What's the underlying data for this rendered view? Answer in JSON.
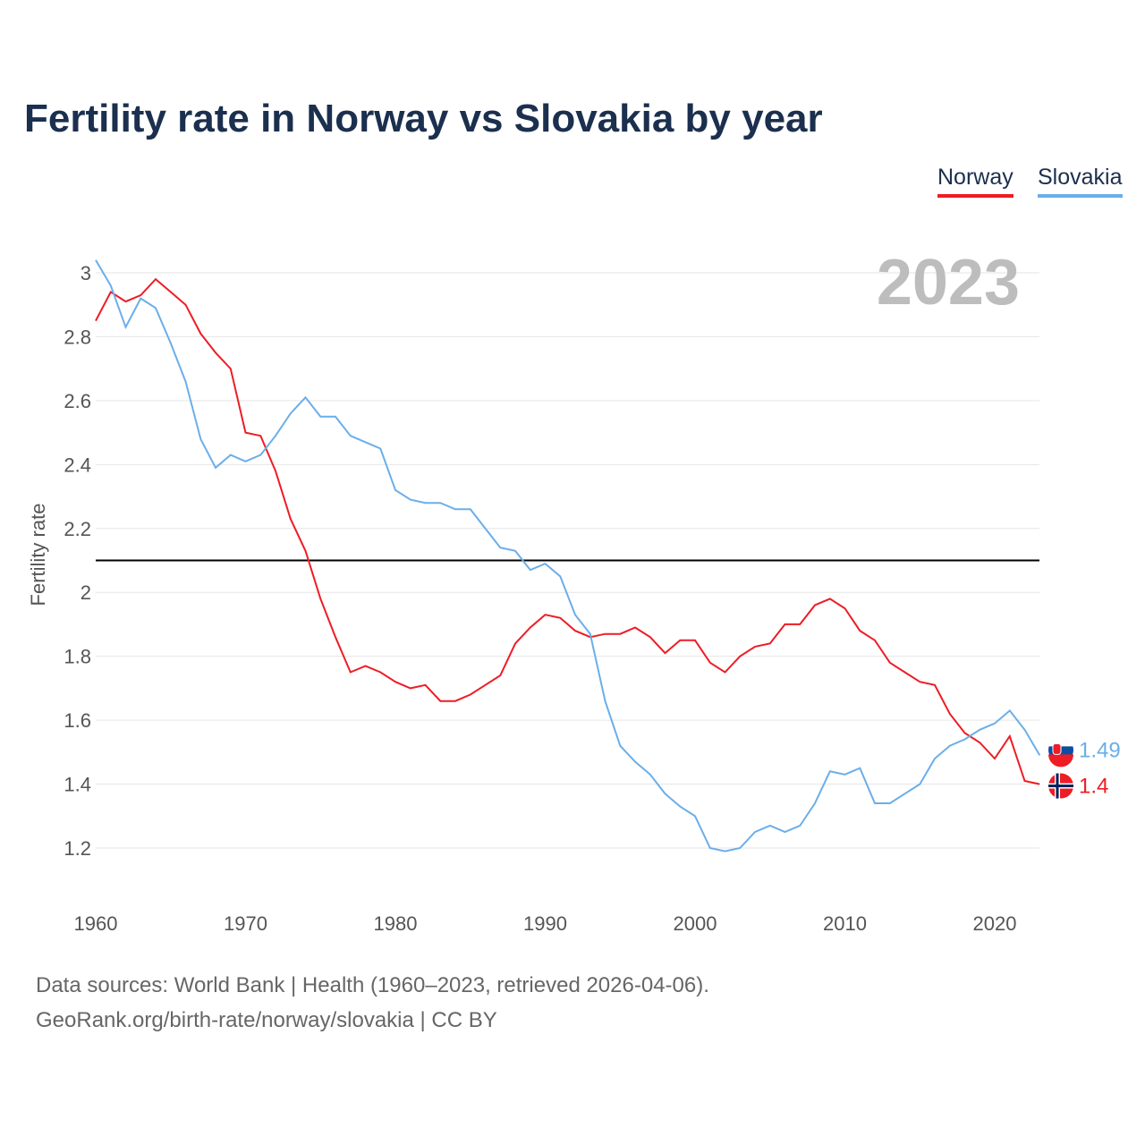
{
  "chart_data": {
    "type": "line",
    "title": "Fertility rate in Norway vs Slovakia by year",
    "ylabel": "Fertility rate",
    "xlabel": "",
    "year_label": "2023",
    "ylim": [
      1.05,
      3.05
    ],
    "xlim": [
      1960,
      2023
    ],
    "yticks": [
      1.2,
      1.4,
      1.6,
      1.8,
      2,
      2.2,
      2.4,
      2.6,
      2.8,
      3
    ],
    "ytick_labels": [
      "1.2",
      "1.4",
      "1.6",
      "1.8",
      "2",
      "2.2",
      "2.4",
      "2.6",
      "2.8",
      "3"
    ],
    "xticks": [
      1960,
      1970,
      1980,
      1990,
      2000,
      2010,
      2020
    ],
    "xtick_labels": [
      "1960",
      "1970",
      "1980",
      "1990",
      "2000",
      "2010",
      "2020"
    ],
    "grid": true,
    "legend_position": "top-right",
    "reference_line": 2.1,
    "x": [
      1960,
      1961,
      1962,
      1963,
      1964,
      1965,
      1966,
      1967,
      1968,
      1969,
      1970,
      1971,
      1972,
      1973,
      1974,
      1975,
      1976,
      1977,
      1978,
      1979,
      1980,
      1981,
      1982,
      1983,
      1984,
      1985,
      1986,
      1987,
      1988,
      1989,
      1990,
      1991,
      1992,
      1993,
      1994,
      1995,
      1996,
      1997,
      1998,
      1999,
      2000,
      2001,
      2002,
      2003,
      2004,
      2005,
      2006,
      2007,
      2008,
      2009,
      2010,
      2011,
      2012,
      2013,
      2014,
      2015,
      2016,
      2017,
      2018,
      2019,
      2020,
      2021,
      2022,
      2023
    ],
    "series": [
      {
        "name": "Norway",
        "color": "#ee1c25",
        "end_label": "1.4",
        "values": [
          2.85,
          2.94,
          2.91,
          2.93,
          2.98,
          2.94,
          2.9,
          2.81,
          2.75,
          2.7,
          2.5,
          2.49,
          2.38,
          2.23,
          2.13,
          1.98,
          1.86,
          1.75,
          1.77,
          1.75,
          1.72,
          1.7,
          1.71,
          1.66,
          1.66,
          1.68,
          1.71,
          1.74,
          1.84,
          1.89,
          1.93,
          1.92,
          1.88,
          1.86,
          1.87,
          1.87,
          1.89,
          1.86,
          1.81,
          1.85,
          1.85,
          1.78,
          1.75,
          1.8,
          1.83,
          1.84,
          1.9,
          1.9,
          1.96,
          1.98,
          1.95,
          1.88,
          1.85,
          1.78,
          1.75,
          1.72,
          1.71,
          1.62,
          1.56,
          1.53,
          1.48,
          1.55,
          1.41,
          1.4
        ]
      },
      {
        "name": "Slovakia",
        "color": "#6aaeea",
        "end_label": "1.49",
        "values": [
          3.04,
          2.96,
          2.83,
          2.92,
          2.89,
          2.78,
          2.66,
          2.48,
          2.39,
          2.43,
          2.41,
          2.43,
          2.49,
          2.56,
          2.61,
          2.55,
          2.55,
          2.49,
          2.47,
          2.45,
          2.32,
          2.29,
          2.28,
          2.28,
          2.26,
          2.26,
          2.2,
          2.14,
          2.13,
          2.07,
          2.09,
          2.05,
          1.93,
          1.87,
          1.66,
          1.52,
          1.47,
          1.43,
          1.37,
          1.33,
          1.3,
          1.2,
          1.19,
          1.2,
          1.25,
          1.27,
          1.25,
          1.27,
          1.34,
          1.44,
          1.43,
          1.45,
          1.34,
          1.34,
          1.37,
          1.4,
          1.48,
          1.52,
          1.54,
          1.57,
          1.59,
          1.63,
          1.57,
          1.49
        ]
      }
    ]
  },
  "footer": {
    "sources": "Data sources: World Bank | Health (1960–2023, retrieved 2026-04-06).",
    "credit": "GeoRank.org/birth-rate/norway/slovakia | CC BY"
  }
}
